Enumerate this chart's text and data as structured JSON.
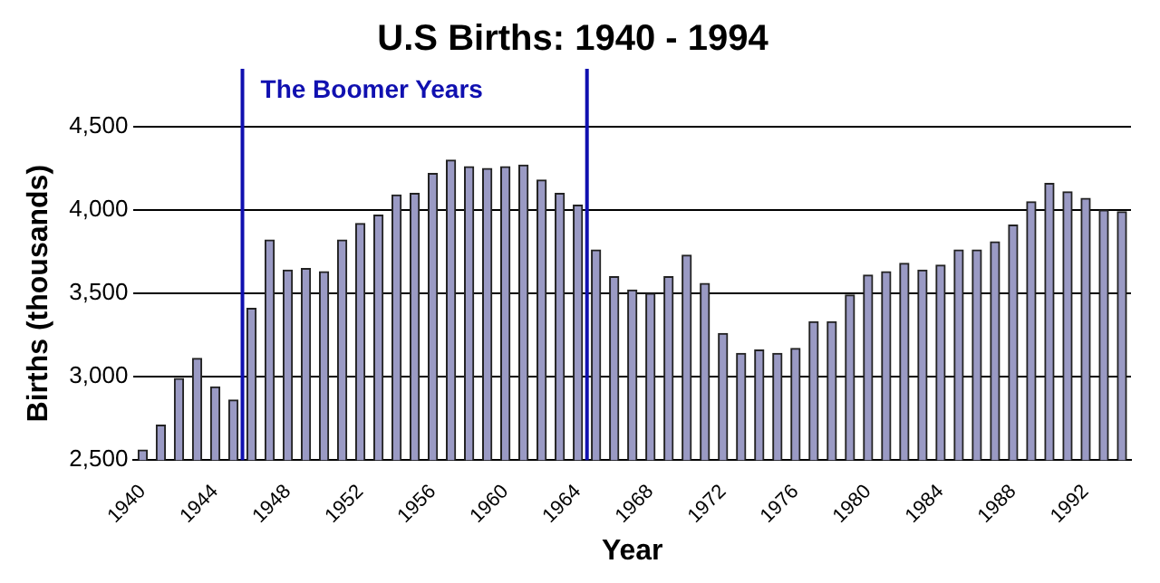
{
  "chart_data": {
    "type": "bar",
    "title": "U.S Births: 1940 - 1994",
    "xlabel": "Year",
    "ylabel": "Births (thousands)",
    "x": [
      1940,
      1941,
      1942,
      1943,
      1944,
      1945,
      1946,
      1947,
      1948,
      1949,
      1950,
      1951,
      1952,
      1953,
      1954,
      1955,
      1956,
      1957,
      1958,
      1959,
      1960,
      1961,
      1962,
      1963,
      1964,
      1965,
      1966,
      1967,
      1968,
      1969,
      1970,
      1971,
      1972,
      1973,
      1974,
      1975,
      1976,
      1977,
      1978,
      1979,
      1980,
      1981,
      1982,
      1983,
      1984,
      1985,
      1986,
      1987,
      1988,
      1989,
      1990,
      1991,
      1992,
      1993,
      1994
    ],
    "values": [
      2560,
      2710,
      2990,
      3110,
      2940,
      2860,
      3410,
      3820,
      3640,
      3650,
      3630,
      3820,
      3920,
      3970,
      4090,
      4100,
      4220,
      4300,
      4260,
      4250,
      4260,
      4270,
      4180,
      4100,
      4030,
      3760,
      3600,
      3520,
      3500,
      3600,
      3730,
      3560,
      3260,
      3140,
      3160,
      3140,
      3170,
      3330,
      3330,
      3490,
      3610,
      3630,
      3680,
      3640,
      3670,
      3760,
      3760,
      3810,
      3910,
      4050,
      4160,
      4110,
      4070,
      4000,
      3990
    ],
    "color": "#9a9ac4",
    "xlim": [
      1939.5,
      1994.5
    ],
    "xticks": [
      1940,
      1944,
      1948,
      1952,
      1956,
      1960,
      1964,
      1968,
      1972,
      1976,
      1980,
      1984,
      1988,
      1992
    ],
    "ylim": [
      2500,
      4500
    ],
    "yticks": [
      {
        "value": 2500,
        "label": "2,500"
      },
      {
        "value": 3000,
        "label": "3,000"
      },
      {
        "value": 3500,
        "label": "3,500"
      },
      {
        "value": 4000,
        "label": "4,000"
      },
      {
        "value": 4500,
        "label": "4,500"
      }
    ],
    "grid": "y",
    "ref_lines": [
      {
        "axis": "x",
        "value": 1945.5,
        "label": "The Boomer Years",
        "color": "#1010b0"
      },
      {
        "axis": "x",
        "value": 1964.5,
        "color": "#1010b0"
      }
    ]
  }
}
